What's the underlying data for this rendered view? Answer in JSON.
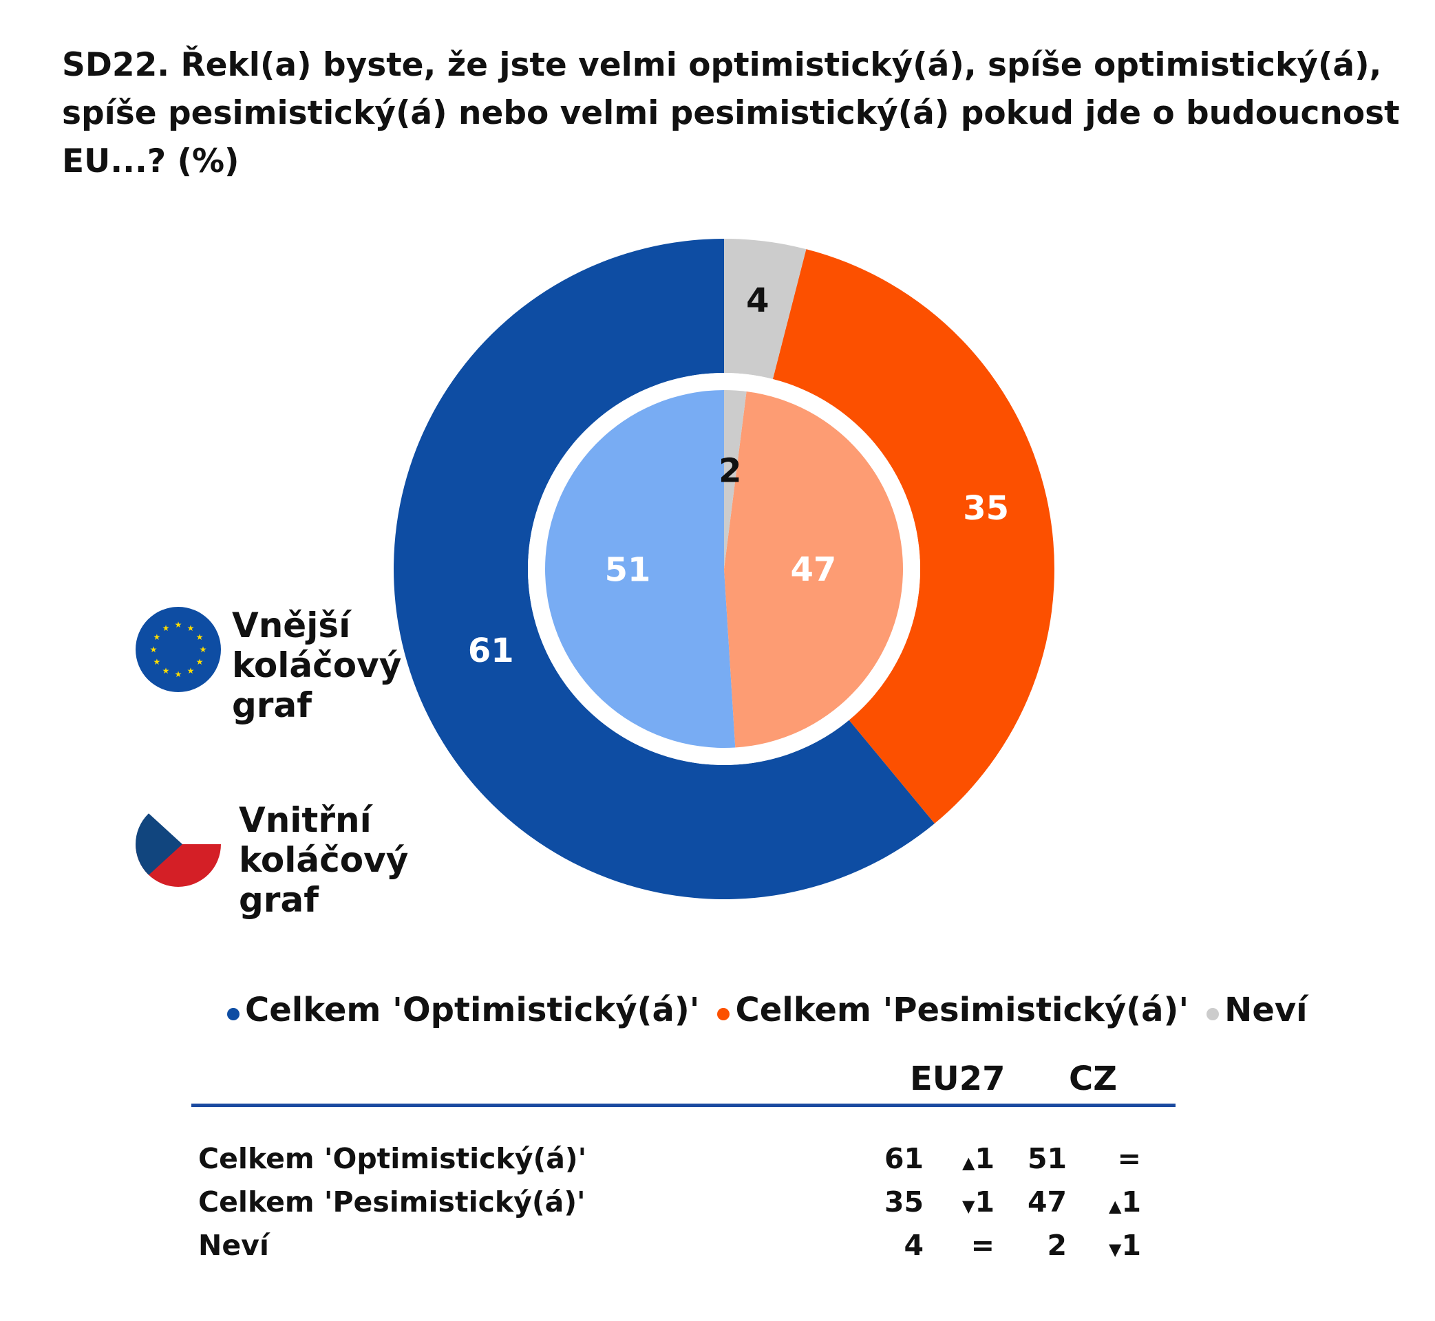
{
  "title": "SD22. Řekl(a) byste, že jste velmi optimistický(á), spíše optimistický(á), spíše pesimistický(á) nebo velmi pesimistický(á) pokud jde o budoucnost EU...? (%)",
  "colors": {
    "outer": [
      "#0e4da3",
      "#fc5000",
      "#cccccc"
    ],
    "inner": [
      "#78acf3",
      "#fd9c73",
      "#cccccc"
    ],
    "rule": "#1b4aa0",
    "eu_blue": "#0e4da3",
    "eu_star": "#ffdd00",
    "cz_red": "#d41f26",
    "cz_blue": "#11457e",
    "cz_white": "#ffffff"
  },
  "flags": {
    "outer_label": "Vnější koláčový graf",
    "inner_label": "Vnitřní koláčový graf",
    "outer_icon": "eu-flag-icon",
    "inner_icon": "cz-flag-icon"
  },
  "legend": [
    {
      "label": "Celkem 'Optimistický(á)'",
      "color": "#0e4da3"
    },
    {
      "label": "Celkem 'Pesimistický(á)'",
      "color": "#fc5000"
    },
    {
      "label": "Neví",
      "color": "#cccccc"
    }
  ],
  "table": {
    "col_eu": "EU27",
    "col_cz": "CZ",
    "rows": [
      {
        "label": "Celkem 'Optimistický(á)'",
        "eu": "61",
        "eu_trend_dir": "▲",
        "eu_trend_val": "1",
        "cz": "51",
        "cz_trend_dir": "",
        "cz_trend_val": "="
      },
      {
        "label": "Celkem 'Pesimistický(á)'",
        "eu": "35",
        "eu_trend_dir": "▼",
        "eu_trend_val": "1",
        "cz": "47",
        "cz_trend_dir": "▲",
        "cz_trend_val": "1"
      },
      {
        "label": "Neví",
        "eu": "4",
        "eu_trend_dir": "",
        "eu_trend_val": "=",
        "cz": "2",
        "cz_trend_dir": "▼",
        "cz_trend_val": "1"
      }
    ]
  },
  "chart_data": {
    "type": "pie",
    "title": "SD22. Řekl(a) byste, že jste velmi optimistický(á), spíše optimistický(á), spíše pesimistický(á) nebo velmi pesimistický(á) pokud jde o budoucnost EU...? (%)",
    "categories": [
      "Celkem 'Optimistický(á)'",
      "Celkem 'Pesimistický(á)'",
      "Neví"
    ],
    "series": [
      {
        "name": "Vnější koláčový graf",
        "values": [
          61,
          35,
          4
        ]
      },
      {
        "name": "Vnitřní koláčový graf",
        "values": [
          51,
          47,
          2
        ]
      }
    ],
    "legend_position": "bottom"
  }
}
